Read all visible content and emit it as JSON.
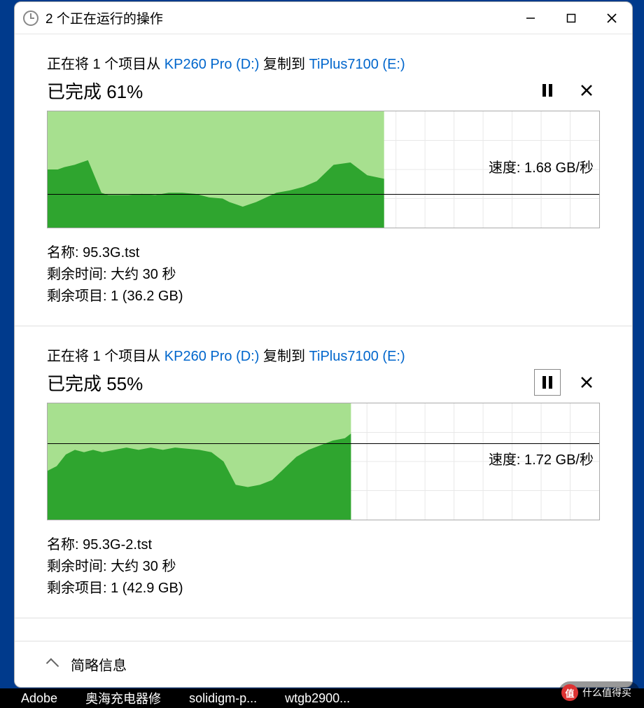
{
  "window": {
    "title": "2 个正在运行的操作"
  },
  "operations": [
    {
      "desc_prefix": "正在将 1 个项目从 ",
      "source": "KP260 Pro (D:)",
      "desc_mid": " 复制到 ",
      "dest": "TiPlus7100 (E:)",
      "status_prefix": "已完成 ",
      "percent": "61%",
      "pause_bordered": false,
      "speed_label": "速度: ",
      "speed_value": "1.68 GB/秒",
      "midline_pct": 70,
      "chart": {
        "progress_pct": 61,
        "fill_light": "#a7e08f",
        "fill_dark": "#2fa52f",
        "grid_color": "#e8e8e8",
        "points": [
          [
            0,
            50
          ],
          [
            3,
            50
          ],
          [
            5,
            48
          ],
          [
            8,
            46
          ],
          [
            10,
            44
          ],
          [
            12,
            42
          ],
          [
            14,
            56
          ],
          [
            16,
            70
          ],
          [
            18,
            72
          ],
          [
            20,
            72
          ],
          [
            24,
            72
          ],
          [
            28,
            71
          ],
          [
            32,
            72
          ],
          [
            36,
            70
          ],
          [
            40,
            70
          ],
          [
            44,
            71
          ],
          [
            48,
            74
          ],
          [
            52,
            75
          ],
          [
            54,
            78
          ],
          [
            56,
            80
          ],
          [
            58,
            82
          ],
          [
            60,
            80
          ],
          [
            62,
            78
          ],
          [
            65,
            74
          ],
          [
            68,
            70
          ],
          [
            72,
            68
          ],
          [
            76,
            65
          ],
          [
            80,
            60
          ],
          [
            85,
            46
          ],
          [
            90,
            44
          ],
          [
            95,
            55
          ],
          [
            100,
            58
          ]
        ]
      },
      "name_label": "名称: ",
      "name_value": "95.3G.tst",
      "time_label": "剩余时间: ",
      "time_value": "大约 30 秒",
      "items_label": "剩余项目: ",
      "items_value": "1 (36.2 GB)"
    },
    {
      "desc_prefix": "正在将 1 个项目从 ",
      "source": "KP260 Pro (D:)",
      "desc_mid": " 复制到 ",
      "dest": "TiPlus7100 (E:)",
      "status_prefix": "已完成 ",
      "percent": "55%",
      "pause_bordered": true,
      "speed_label": "速度: ",
      "speed_value": "1.72 GB/秒",
      "midline_pct": 34,
      "chart": {
        "progress_pct": 55,
        "fill_light": "#a7e08f",
        "fill_dark": "#2fa52f",
        "grid_color": "#e8e8e8",
        "points": [
          [
            0,
            58
          ],
          [
            3,
            54
          ],
          [
            6,
            44
          ],
          [
            9,
            40
          ],
          [
            12,
            42
          ],
          [
            15,
            40
          ],
          [
            18,
            42
          ],
          [
            22,
            40
          ],
          [
            26,
            38
          ],
          [
            30,
            40
          ],
          [
            34,
            38
          ],
          [
            38,
            40
          ],
          [
            42,
            38
          ],
          [
            46,
            39
          ],
          [
            50,
            40
          ],
          [
            54,
            42
          ],
          [
            58,
            50
          ],
          [
            62,
            70
          ],
          [
            66,
            72
          ],
          [
            70,
            70
          ],
          [
            74,
            66
          ],
          [
            78,
            56
          ],
          [
            82,
            46
          ],
          [
            86,
            40
          ],
          [
            90,
            36
          ],
          [
            94,
            32
          ],
          [
            98,
            30
          ],
          [
            100,
            26
          ]
        ]
      },
      "name_label": "名称: ",
      "name_value": "95.3G-2.tst",
      "time_label": "剩余时间: ",
      "time_value": "大约 30 秒",
      "items_label": "剩余项目: ",
      "items_value": "1 (42.9 GB)"
    }
  ],
  "footer": {
    "label": "简略信息"
  },
  "taskbar": {
    "items": [
      "Adobe",
      "奥海充电器修",
      "solidigm-p...",
      "wtgb2900..."
    ]
  },
  "watermark": {
    "logo": "值",
    "text": "什么值得买"
  }
}
